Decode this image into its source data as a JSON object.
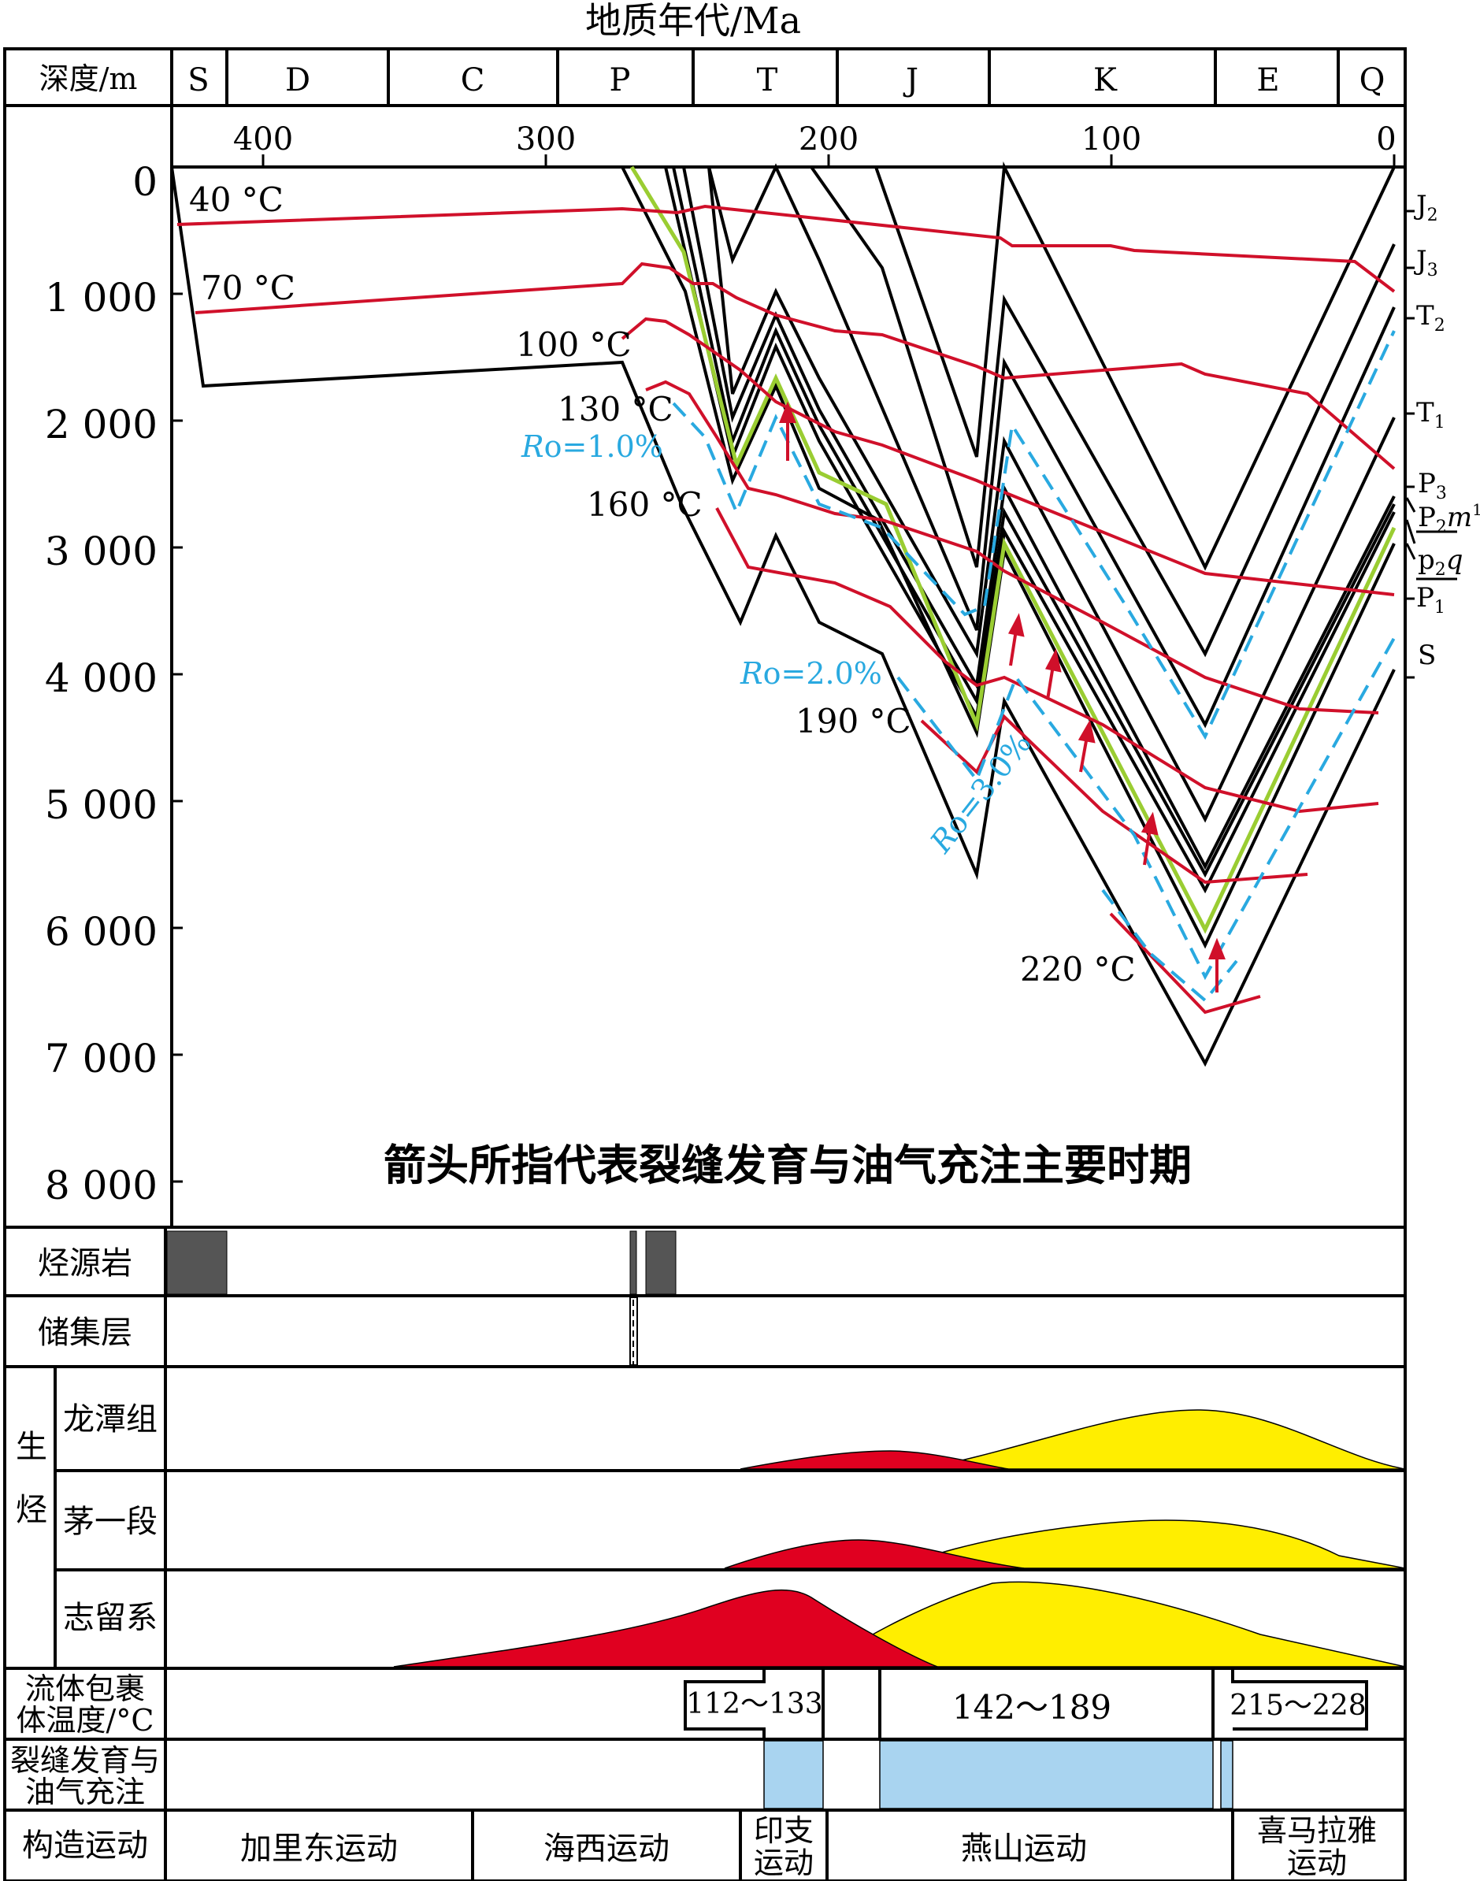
{
  "title": "地质年代/Ma",
  "depth_header": "深度/m",
  "periods": [
    "S",
    "D",
    "C",
    "P",
    "T",
    "J",
    "K",
    "E",
    "Q"
  ],
  "age_ticks": [
    "400",
    "300",
    "200",
    "100",
    "0"
  ],
  "depth_ticks": [
    "0",
    "1 000",
    "2 000",
    "3 000",
    "4 000",
    "5 000",
    "6 000",
    "7 000",
    "8 000"
  ],
  "isotherms": [
    "40 °C",
    "70 °C",
    "100 °C",
    "130 °C",
    "160 °C",
    "190 °C",
    "220 °C"
  ],
  "ro_labels": {
    "ro1": "=1.0%",
    "ro2": "=2.0%",
    "ro3": "=3.0%",
    "symbol": "R",
    "sub": "o"
  },
  "strata": {
    "j2": {
      "base": "J",
      "sub": "2"
    },
    "j3": {
      "base": "J",
      "sub": "3"
    },
    "t2": {
      "base": "T",
      "sub": "2"
    },
    "t1": {
      "base": "T",
      "sub": "1"
    },
    "p3": {
      "base": "P",
      "sub": "3"
    },
    "p2m1": {
      "base": "P",
      "sub": "2",
      "mid": "m",
      "sup": "1"
    },
    "p2q": {
      "base": "p",
      "sub": "2",
      "mid": "q"
    },
    "p1": {
      "base": "P",
      "sub": "1"
    },
    "s": {
      "base": "S"
    }
  },
  "caption": "箭头所指代表裂缝发育与油气充注主要时期",
  "rows": {
    "source_rock": "烃源岩",
    "reservoir": "储集层",
    "generation": "生烃",
    "longtan": "龙潭组",
    "mao1": "茅一段",
    "silurian": "志留系",
    "inclusion_l1": "流体包裹",
    "inclusion_l2": "体温度/°C",
    "fracture_l1": "裂缝发育与",
    "fracture_l2": "油气充注",
    "tectonic": "构造运动"
  },
  "inclusion_ranges": [
    "112～133",
    "142～189",
    "215～228"
  ],
  "tectonic_events": {
    "caledonian": "加里东运动",
    "hercynian": "海西运动",
    "indosinian_1": "印支",
    "indosinian_2": "运动",
    "yanshan": "燕山运动",
    "himalaya_1": "喜马拉雅",
    "himalaya_2": "运动"
  },
  "colors": {
    "isotherm": "#d0102a",
    "ro": "#29a9e0",
    "strata": "#000000",
    "highlight": "#9acd32",
    "oil": "#e00020",
    "gas": "#ffee00",
    "fracture_fill": "#a9d4f0",
    "source_fill": "#555555"
  }
}
